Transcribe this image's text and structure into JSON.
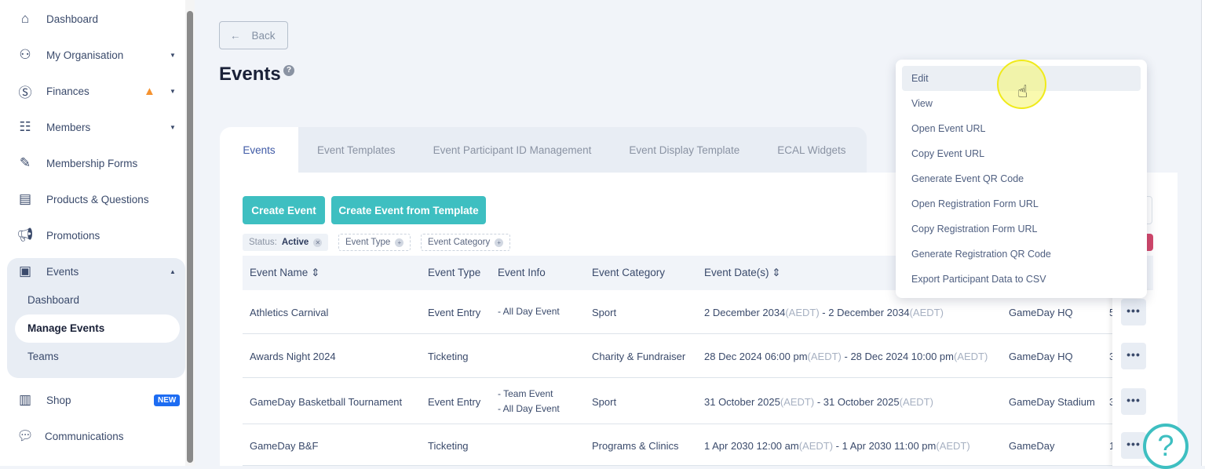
{
  "sidebar": {
    "items": [
      {
        "label": "Dashboard",
        "icon": "home-icon"
      },
      {
        "label": "My Organisation",
        "icon": "org-chart-icon"
      },
      {
        "label": "Finances",
        "icon": "dollar-icon"
      },
      {
        "label": "Members",
        "icon": "members-icon"
      },
      {
        "label": "Membership Forms",
        "icon": "form-icon"
      },
      {
        "label": "Products & Questions",
        "icon": "products-icon"
      },
      {
        "label": "Promotions",
        "icon": "megaphone-icon"
      },
      {
        "label": "Events",
        "icon": "calendar-icon"
      },
      {
        "label": "Shop",
        "icon": "shop-icon",
        "badge": "NEW"
      },
      {
        "label": "Communications",
        "icon": "chat-icon"
      }
    ],
    "events_sub": [
      "Dashboard",
      "Manage Events",
      "Teams"
    ]
  },
  "back_label": "Back",
  "page_title": "Events",
  "tabs": [
    "Events",
    "Event Templates",
    "Event Participant ID Management",
    "Event Display Template",
    "ECAL Widgets"
  ],
  "buttons": {
    "create": "Create Event",
    "create_template": "Create Event from Template"
  },
  "filters": {
    "status_label": "Status:",
    "status_value": "Active",
    "event_type": "Event Type",
    "event_category": "Event Category"
  },
  "table": {
    "headers": [
      "Event Name",
      "Event Type",
      "Event Info",
      "Event Category",
      "Event Date(s)"
    ],
    "rows": [
      {
        "name": "Athletics Carnival",
        "type": "Event Entry",
        "info1": "- All Day Event",
        "info2": "",
        "category": "Sport",
        "start": "2 December 2034",
        "end": "2 December 2034",
        "tz": "(AEDT)",
        "venue": "GameDay HQ",
        "partial": "5"
      },
      {
        "name": "Awards Night 2024",
        "type": "Ticketing",
        "info1": "",
        "info2": "",
        "category": "Charity & Fundraiser",
        "start": "28 Dec 2024 06:00 pm",
        "end": "28 Dec 2024 10:00 pm",
        "tz": "(AEDT)",
        "venue": "GameDay HQ",
        "partial": "3"
      },
      {
        "name": "GameDay Basketball Tournament",
        "type": "Event Entry",
        "info1": "- Team Event",
        "info2": "- All Day Event",
        "category": "Sport",
        "start": "31 October 2025",
        "end": "31 October 2025",
        "tz": "(AEDT)",
        "venue": "GameDay Stadium",
        "partial": "3"
      },
      {
        "name": "GameDay B&F",
        "type": "Ticketing",
        "info1": "",
        "info2": "",
        "category": "Programs & Clinics",
        "start": "1 Apr 2030 12:00 am",
        "end": "1 Apr 2030 11:00 pm",
        "tz": "(AEDT)",
        "venue": "GameDay",
        "partial": "1"
      }
    ]
  },
  "menu": [
    "Edit",
    "View",
    "Open Event URL",
    "Copy Event URL",
    "Generate Event QR Code",
    "Open Registration Form URL",
    "Copy Registration Form URL",
    "Generate Registration QR Code",
    "Export Participant Data to CSV"
  ],
  "colors": {
    "accent": "#3ebfc1",
    "warning": "#f5922f",
    "new_badge": "#1d6cf2"
  }
}
